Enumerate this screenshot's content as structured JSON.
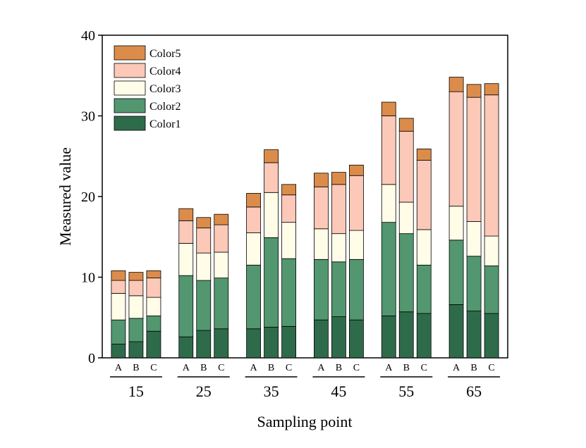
{
  "chart_data": {
    "type": "bar",
    "stacked": true,
    "title": "",
    "xlabel": "Sampling point",
    "ylabel": "Measured value",
    "ylim": [
      0,
      40
    ],
    "yticks": [
      0,
      10,
      20,
      30,
      40
    ],
    "grid": false,
    "legend_position": "top-left",
    "legend_order": [
      "Color5",
      "Color4",
      "Color3",
      "Color2",
      "Color1"
    ],
    "groups": [
      "15",
      "25",
      "35",
      "45",
      "55",
      "65"
    ],
    "subcategories": [
      "A",
      "B",
      "C"
    ],
    "series": [
      {
        "name": "Color1",
        "color": "#2e6b4a",
        "values": [
          1.7,
          2.0,
          3.3,
          2.6,
          3.4,
          3.6,
          3.6,
          3.8,
          3.9,
          4.7,
          5.1,
          4.7,
          5.2,
          5.7,
          5.5,
          6.6,
          5.8,
          5.5
        ]
      },
      {
        "name": "Color2",
        "color": "#52976f",
        "values": [
          3.0,
          2.9,
          1.9,
          7.6,
          6.2,
          6.3,
          7.9,
          11.1,
          8.4,
          7.5,
          6.8,
          7.5,
          11.6,
          9.7,
          6.0,
          8.0,
          6.8,
          5.9
        ]
      },
      {
        "name": "Color3",
        "color": "#fffce8",
        "values": [
          3.3,
          2.8,
          2.3,
          4.0,
          3.4,
          3.2,
          4.0,
          5.6,
          4.5,
          3.8,
          3.5,
          3.6,
          4.7,
          3.9,
          4.4,
          4.2,
          4.3,
          3.7
        ]
      },
      {
        "name": "Color4",
        "color": "#fcc8b8",
        "values": [
          1.6,
          1.9,
          2.4,
          2.8,
          3.1,
          3.4,
          3.2,
          3.7,
          3.4,
          5.2,
          6.1,
          6.8,
          8.5,
          8.8,
          8.6,
          14.2,
          15.4,
          17.5
        ]
      },
      {
        "name": "Color5",
        "color": "#dc8c4a",
        "values": [
          1.2,
          1.0,
          0.9,
          1.5,
          1.3,
          1.3,
          1.7,
          1.6,
          1.3,
          1.7,
          1.5,
          1.3,
          1.7,
          1.6,
          1.4,
          1.8,
          1.6,
          1.4
        ]
      }
    ]
  }
}
